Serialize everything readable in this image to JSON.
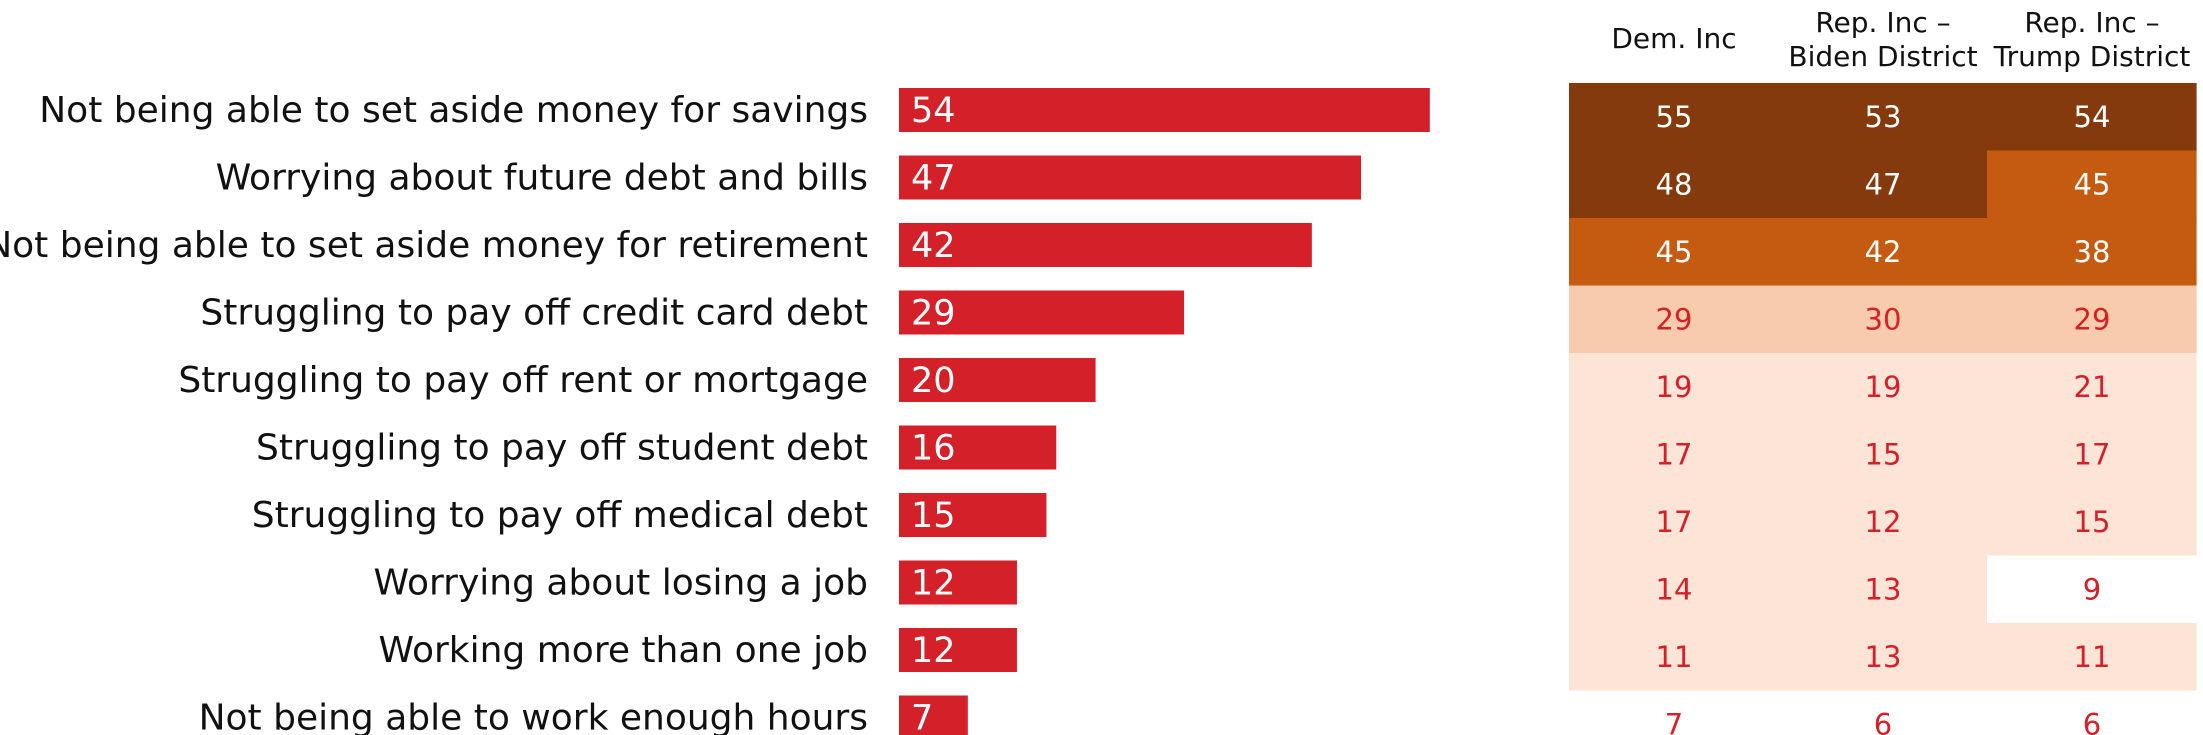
{
  "chart_data": [
    {
      "type": "bar",
      "orientation": "horizontal",
      "categories": [
        "Not being able to set aside money for savings",
        "Worrying about future debt and bills",
        "Not being able to set aside money for retirement",
        "Struggling to pay off credit card debt",
        "Struggling to pay off rent or mortgage",
        "Struggling to pay off student debt",
        "Struggling to pay off medical debt",
        "Worrying about losing a job",
        "Working more than one job",
        "Not being able to work enough hours"
      ],
      "values": [
        54,
        47,
        42,
        29,
        20,
        16,
        15,
        12,
        12,
        7
      ],
      "xlim": [
        0,
        100
      ],
      "grid": false,
      "colors": {
        "bar": "#d42129"
      }
    },
    {
      "type": "heatmap",
      "columns": [
        {
          "lines": [
            "Dem. Inc"
          ]
        },
        {
          "lines": [
            "Rep. Inc –",
            "Biden District"
          ]
        },
        {
          "lines": [
            "Rep. Inc –",
            "Trump District"
          ]
        }
      ],
      "rows": [
        [
          55,
          53,
          54
        ],
        [
          48,
          47,
          45
        ],
        [
          45,
          42,
          38
        ],
        [
          29,
          30,
          29
        ],
        [
          19,
          19,
          21
        ],
        [
          17,
          15,
          17
        ],
        [
          17,
          12,
          15
        ],
        [
          14,
          13,
          9
        ],
        [
          11,
          13,
          11
        ],
        [
          7,
          6,
          6
        ]
      ],
      "colors": {
        "dark": "#843a0c",
        "medium": "#c55a11",
        "light": "#f8cbad",
        "pale": "#fce4d6",
        "none": "#ffffff",
        "text_on_dark": "#ffffff",
        "text_on_light": "#d42129"
      }
    }
  ]
}
